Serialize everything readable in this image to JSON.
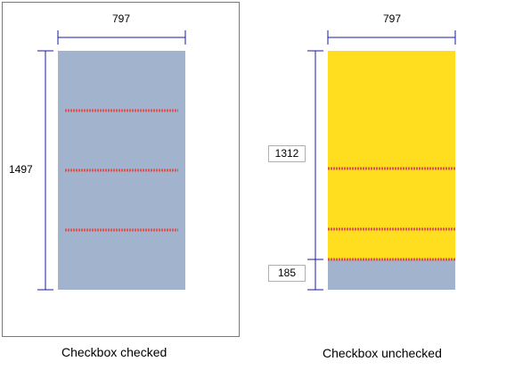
{
  "left_panel": {
    "width_value": "797",
    "height_value": "1497",
    "caption": "Checkbox checked",
    "body_color": "#a2b3cd",
    "line_color": "#d9534f"
  },
  "right_panel": {
    "width_value": "797",
    "top_section_value": "1312",
    "bottom_section_value": "185",
    "caption": "Checkbox unchecked",
    "top_color": "#ffdd1f",
    "bottom_color": "#a2b3cd",
    "line_color": "#d9534f"
  },
  "dimension_line_color": "#1a1aa6"
}
